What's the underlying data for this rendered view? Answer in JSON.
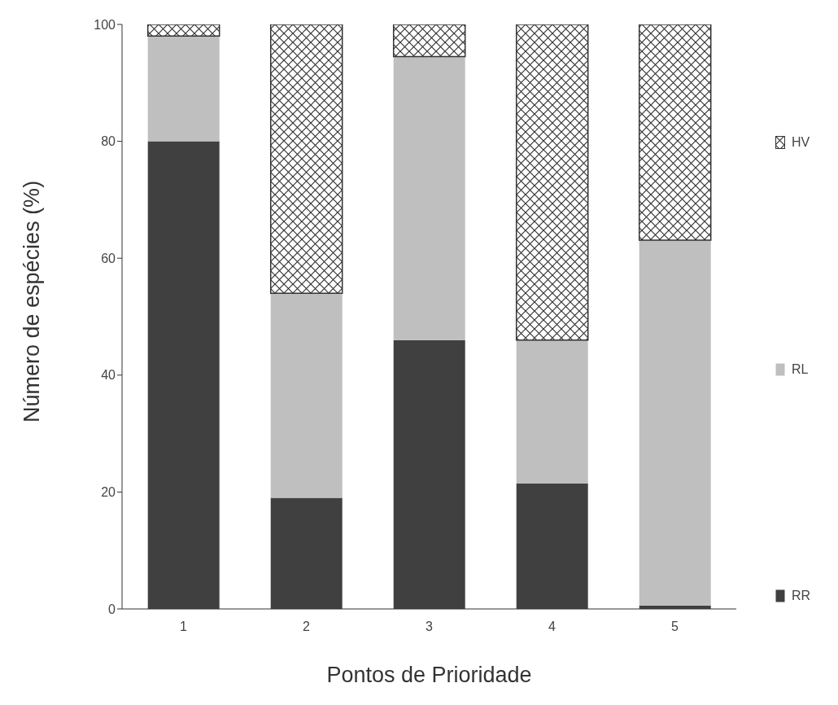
{
  "chart_data": {
    "type": "bar",
    "stacked": true,
    "xlabel": "Pontos de Prioridade",
    "ylabel": "Número de espécies (%)",
    "categories": [
      "1",
      "2",
      "3",
      "4",
      "5"
    ],
    "ylim": [
      0,
      100
    ],
    "yticks": [
      0,
      20,
      40,
      60,
      80,
      100
    ],
    "grid": false,
    "legend": "right",
    "series": [
      {
        "name": "RR",
        "color": "#404040",
        "values": [
          80,
          19,
          46,
          21.5,
          0.6
        ]
      },
      {
        "name": "RL",
        "color": "#bfbfbf",
        "values": [
          18,
          35,
          48.5,
          24.5,
          62.5
        ]
      },
      {
        "name": "HV",
        "color": "#333333",
        "values": [
          2,
          46,
          5.5,
          54,
          36.9
        ]
      }
    ]
  }
}
